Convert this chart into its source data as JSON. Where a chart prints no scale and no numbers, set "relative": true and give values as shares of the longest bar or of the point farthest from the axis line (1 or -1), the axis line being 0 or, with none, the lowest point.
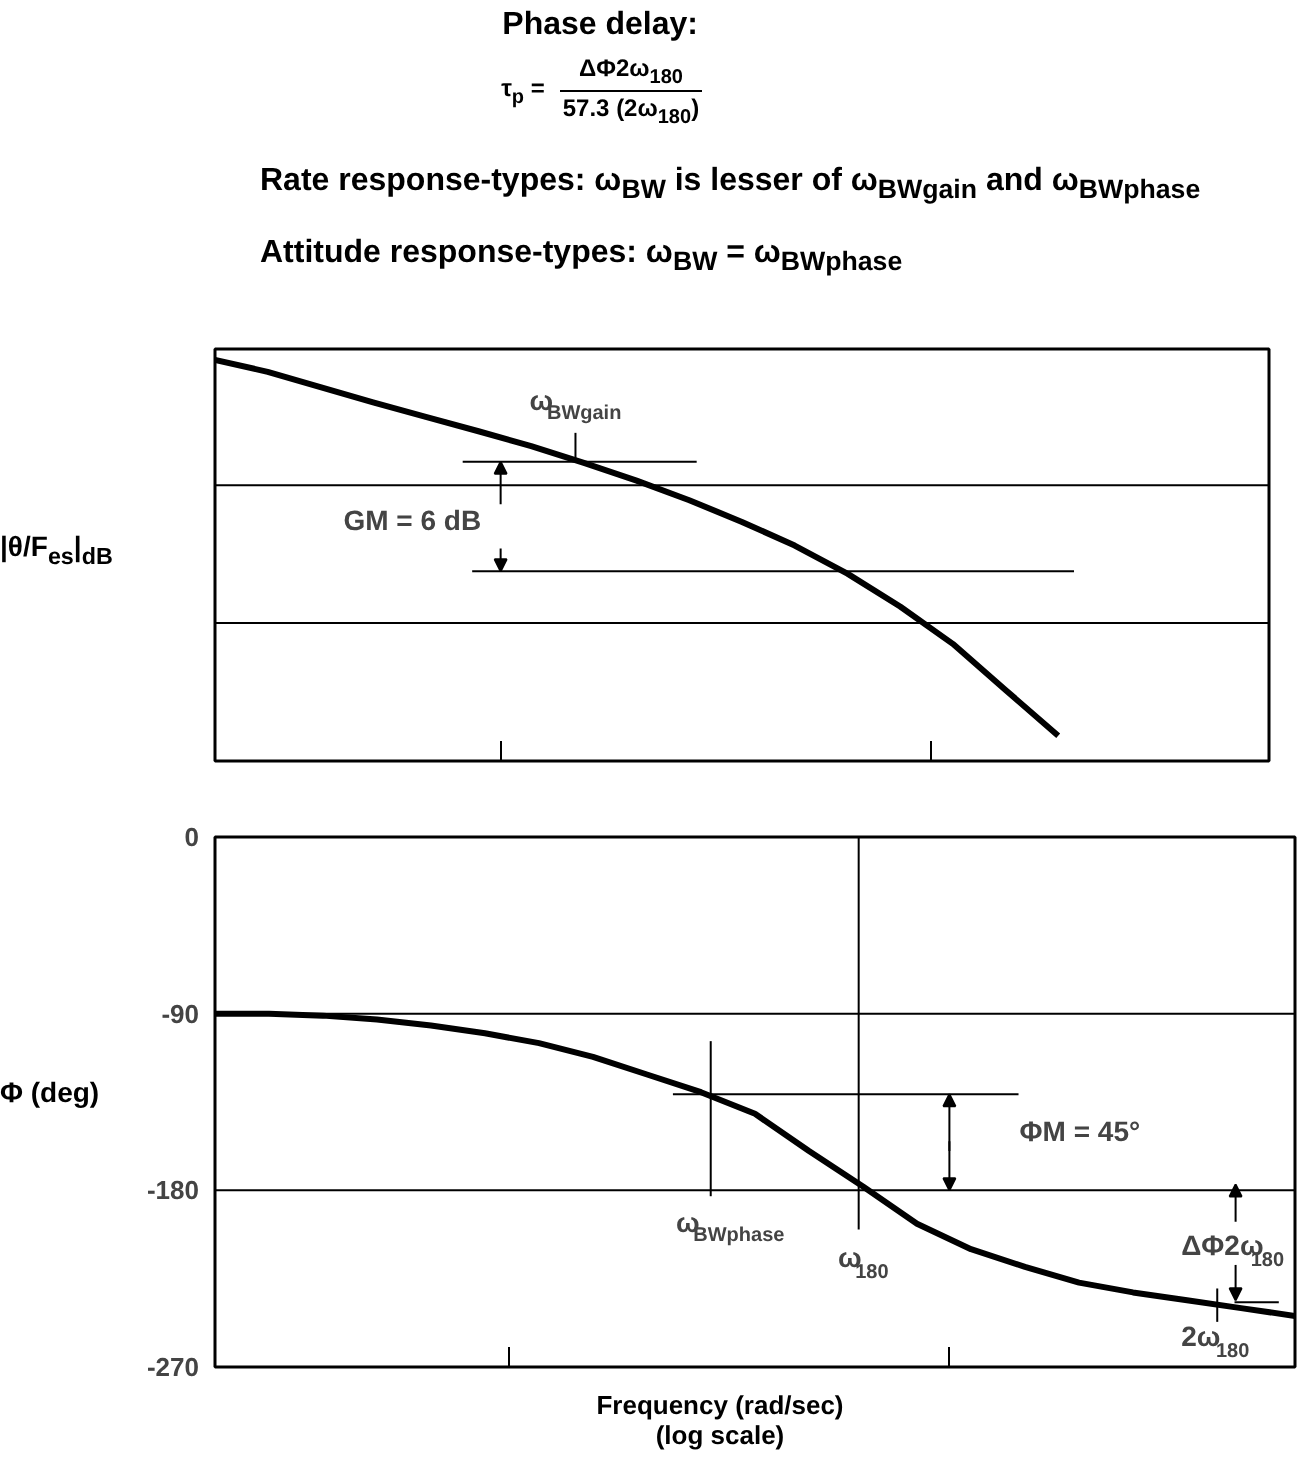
{
  "chart_data": [
    {
      "type": "line",
      "relative": true,
      "title": "Phase delay:",
      "ylabel": "|θ/F$_{es}$|$_{dB}$",
      "annotations": [
        "τ$_{p}$ =",
        "ΔΦ2ω$_{180}$",
        "57.3 (2ω$_{180}$)",
        "Rate response-types:  ω$_{BW}$ is lesser of ω$_{BWgain}$ and ω$_{BWphase}$",
        "Attitude response-types:  ω$_{BW}$ = ω$_{BWphase}$",
        "GM = 6 dB",
        "ω$_{BWgain}$"
      ],
      "categories": [
        null,
        null,
        null,
        null,
        null,
        null,
        null,
        null,
        null,
        null,
        null,
        null,
        null,
        null,
        null,
        null,
        null
      ],
      "tick_labels": false,
      "grid": false,
      "ref_lines": [
        {
          "axis": "y",
          "value": 0.6875,
          "color": "#000000"
        },
        {
          "axis": "y",
          "value": 0.344,
          "color": "#000000"
        },
        {
          "axis": "y",
          "value": 0.746,
          "color": "#000000"
        },
        {
          "axis": "y",
          "value": 0.473,
          "color": "#000000"
        }
      ],
      "series": [
        {
          "color": "#000000",
          "values": [
            1.0,
            0.97,
            0.932,
            0.894,
            0.858,
            0.822,
            0.785,
            0.743,
            0.699,
            0.65,
            0.596,
            0.537,
            0.467,
            0.385,
            0.292,
            0.177,
            0.063
          ]
        }
      ]
    },
    {
      "type": "line",
      "ylabel": "Φ (deg)",
      "xlabel": "Frequency (rad/sec)\n(log scale)",
      "annotations": [
        "ΦM = 45°",
        "ω$_{BWphase}$",
        "ω$_{180}$",
        "ΔΦ2ω$_{180}$",
        "2ω$_{180}$"
      ],
      "categories": [
        null,
        null,
        null,
        null,
        null,
        null,
        null,
        null,
        null,
        null,
        null,
        null,
        null,
        null,
        null,
        null,
        null,
        null,
        null,
        null,
        null
      ],
      "ylim": [
        -270,
        0
      ],
      "yticks": [
        0,
        -90,
        -180,
        -270
      ],
      "tick_labels": "y",
      "grid": false,
      "ref_lines": [
        {
          "axis": "y",
          "value": -90,
          "color": "#000000"
        },
        {
          "axis": "y",
          "value": -180,
          "color": "#000000"
        }
      ],
      "series": [
        {
          "color": "#000000",
          "values": [
            -90,
            -90,
            -91,
            -93,
            -96,
            -100,
            -105,
            -112,
            -121,
            -130,
            -141,
            -160,
            -178,
            -197,
            -210,
            -219,
            -227,
            -232,
            -236,
            -240,
            -244
          ]
        }
      ]
    }
  ]
}
